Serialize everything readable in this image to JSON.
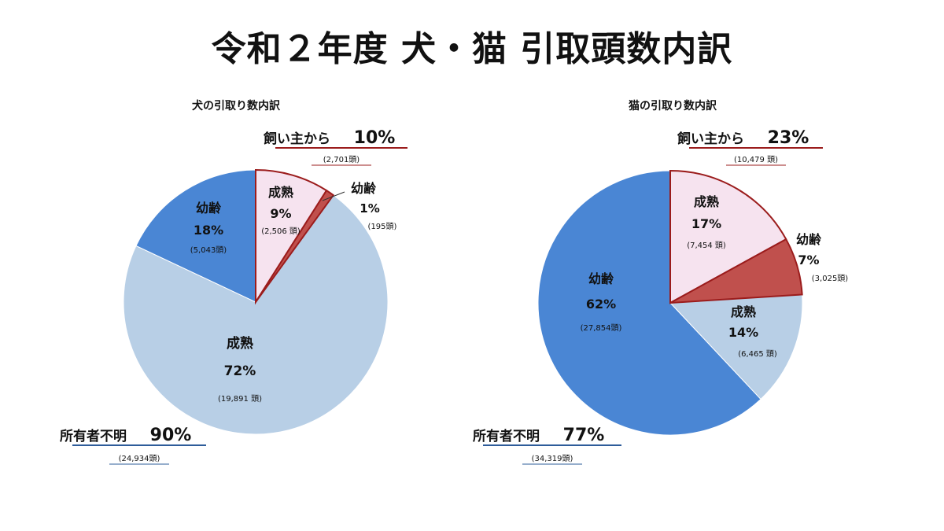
{
  "title": "令和２年度 犬・猫 引取頭数内訳",
  "colors": {
    "owner_adult": "#f6e3ef",
    "owner_young": "#c0504d",
    "owner_stroke": "#9b1c1c",
    "unknown_young": "#4a86d4",
    "unknown_adult": "#b8cfe6",
    "pie_stroke": "#ffffff"
  },
  "chart_data": [
    {
      "type": "pie",
      "title": "犬の引取り数内訳",
      "groups": [
        {
          "label": "飼い主から",
          "percent": "10%",
          "count": "(2,701頭)"
        },
        {
          "label": "所有者不明",
          "percent": "90%",
          "count": "(24,934頭)"
        }
      ],
      "slices": [
        {
          "group": "飼い主から",
          "label": "成熟",
          "value": 9,
          "count_value": 2506,
          "percent": "9%",
          "count": "(2,506 頭)"
        },
        {
          "group": "飼い主から",
          "label": "幼齢",
          "value": 1,
          "count_value": 195,
          "percent": "1%",
          "count": "(195頭)"
        },
        {
          "group": "所有者不明",
          "label": "成熟",
          "value": 72,
          "count_value": 19891,
          "percent": "72%",
          "count": "(19,891 頭)"
        },
        {
          "group": "所有者不明",
          "label": "幼齢",
          "value": 18,
          "count_value": 5043,
          "percent": "18%",
          "count": "(5,043頭)"
        }
      ]
    },
    {
      "type": "pie",
      "title": "猫の引取り数内訳",
      "groups": [
        {
          "label": "飼い主から",
          "percent": "23%",
          "count": "(10,479 頭)"
        },
        {
          "label": "所有者不明",
          "percent": "77%",
          "count": "(34,319頭)"
        }
      ],
      "slices": [
        {
          "group": "飼い主から",
          "label": "成熟",
          "value": 17,
          "count_value": 7454,
          "percent": "17%",
          "count": "(7,454 頭)"
        },
        {
          "group": "飼い主から",
          "label": "幼齢",
          "value": 7,
          "count_value": 3025,
          "percent": "7%",
          "count": "(3,025頭)"
        },
        {
          "group": "所有者不明",
          "label": "成熟",
          "value": 14,
          "count_value": 6465,
          "percent": "14%",
          "count": "(6,465 頭)"
        },
        {
          "group": "所有者不明",
          "label": "幼齢",
          "value": 62,
          "count_value": 27854,
          "percent": "62%",
          "count": "(27,854頭)"
        }
      ]
    }
  ]
}
